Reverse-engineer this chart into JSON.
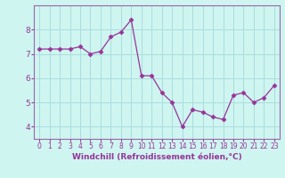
{
  "x": [
    0,
    1,
    2,
    3,
    4,
    5,
    6,
    7,
    8,
    9,
    10,
    11,
    12,
    13,
    14,
    15,
    16,
    17,
    18,
    19,
    20,
    21,
    22,
    23
  ],
  "y": [
    7.2,
    7.2,
    7.2,
    7.2,
    7.3,
    7.0,
    7.1,
    7.7,
    7.9,
    8.4,
    6.1,
    6.1,
    5.4,
    5.0,
    4.0,
    4.7,
    4.6,
    4.4,
    4.3,
    5.3,
    5.4,
    5.0,
    5.2,
    5.7
  ],
  "line_color": "#993399",
  "marker": "D",
  "marker_size": 2.5,
  "bg_color": "#cef5f0",
  "grid_color": "#aadddd",
  "xlabel": "Windchill (Refroidissement éolien,°C)",
  "xlabel_fontsize": 6.5,
  "tick_fontsize": 6.5,
  "ylim": [
    3.5,
    9.0
  ],
  "xlim": [
    -0.5,
    23.5
  ],
  "yticks": [
    4,
    5,
    6,
    7,
    8
  ],
  "xticks": [
    0,
    1,
    2,
    3,
    4,
    5,
    6,
    7,
    8,
    9,
    10,
    11,
    12,
    13,
    14,
    15,
    16,
    17,
    18,
    19,
    20,
    21,
    22,
    23
  ],
  "spine_color": "#9966aa"
}
